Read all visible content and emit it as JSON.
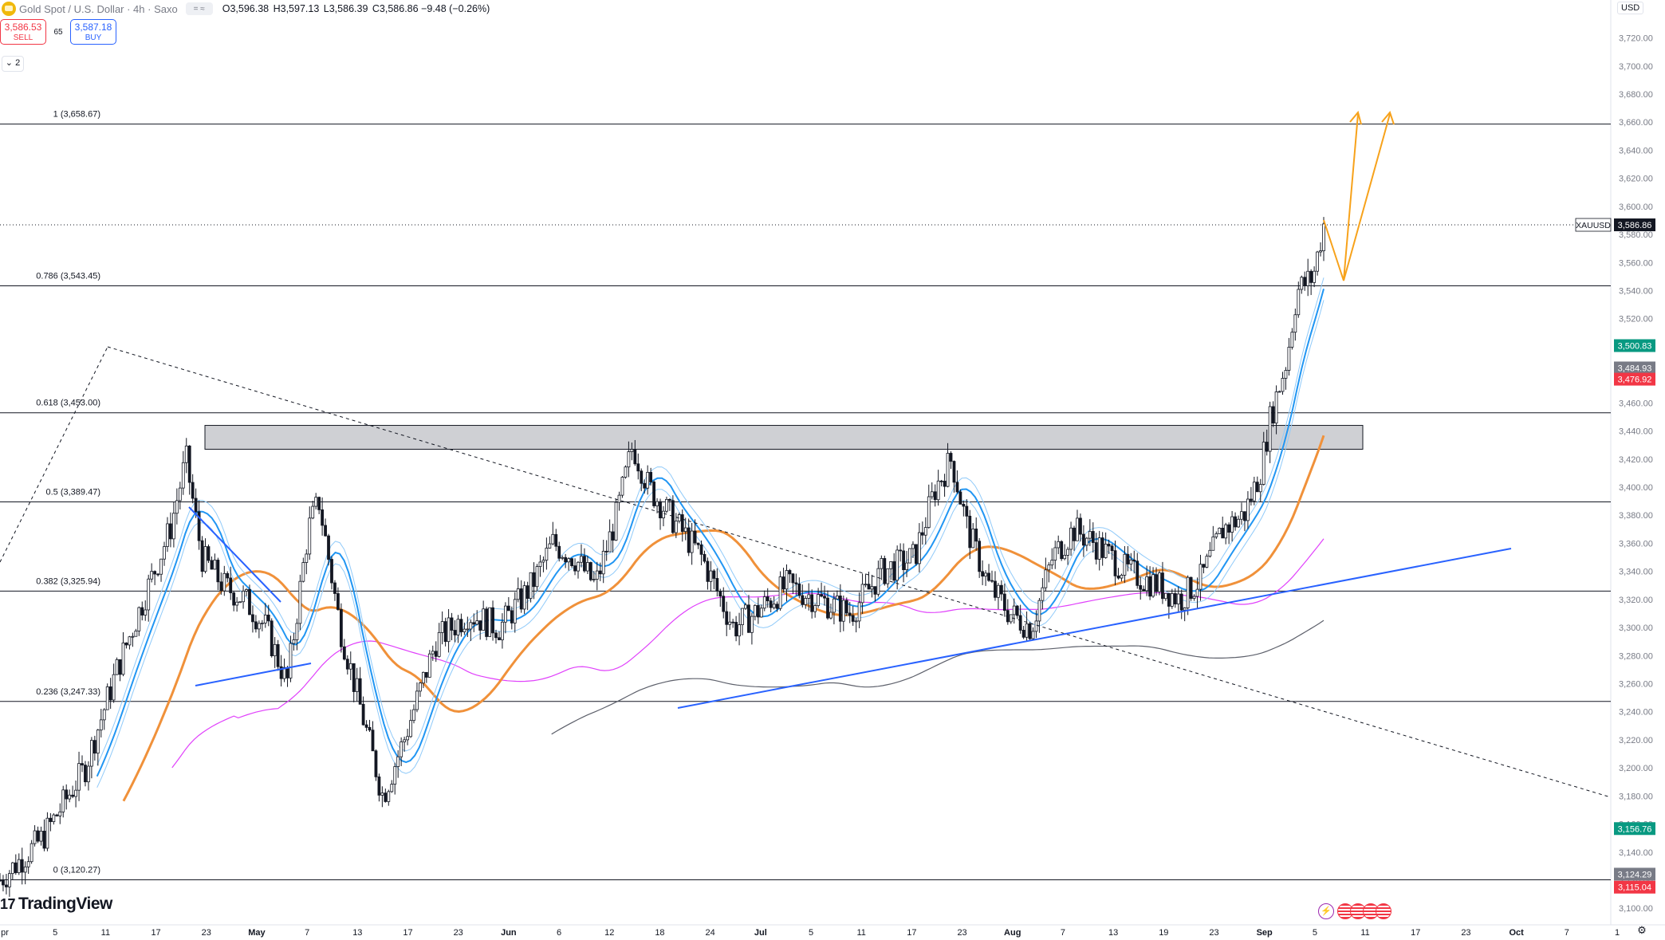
{
  "header": {
    "title": "Gold Spot / U.S. Dollar · 4h · Saxo",
    "open_label": "O",
    "open": "3,596.38",
    "high_label": "H",
    "high": "3,597.13",
    "low_label": "L",
    "low": "3,586.39",
    "close_label": "C",
    "close": "3,586.86",
    "change": "−9.48 (−0.26%)"
  },
  "trade": {
    "sell_price": "3,586.53",
    "sell_label": "SELL",
    "spread": "65",
    "buy_price": "3,587.18",
    "buy_label": "BUY"
  },
  "collapse_label": "⌄ 2",
  "currency": "USD",
  "logo": {
    "mark": "17",
    "text": "TradingView"
  },
  "icons": {
    "flash": "flash-icon",
    "flags": "us-flag-icon",
    "settings": "gear-icon"
  },
  "colors": {
    "candle": "#131722",
    "ema_fast": "#2196f3",
    "ema_band": "#90caf9",
    "ema_mid": "#f0913a",
    "ema_slow": "#e040fb",
    "ma_long": "#5d606b",
    "trend_up": "#2962ff",
    "projection": "#f7a21b",
    "price_tag": "#131722",
    "green_tag": "#089981",
    "gray_tag": "#787b86",
    "red_tag": "#f23645"
  },
  "chart_data": {
    "type": "candlestick",
    "symbol": "XAUUSD",
    "timeframe": "4h",
    "last_price": 3586.86,
    "ylim": [
      3095,
      3730
    ],
    "y_ticks": [
      3100,
      3120,
      3140,
      3160,
      3180,
      3200,
      3220,
      3240,
      3260,
      3280,
      3300,
      3320,
      3340,
      3360,
      3380,
      3400,
      3420,
      3440,
      3460,
      3480,
      3500,
      3520,
      3540,
      3560,
      3580,
      3600,
      3620,
      3640,
      3660,
      3680,
      3700,
      3720
    ],
    "y_tick_labels": [
      "3,100.00",
      "3,120.00",
      "3,140.00",
      "3,160.00",
      "3,180.00",
      "3,200.00",
      "3,220.00",
      "3,240.00",
      "3,260.00",
      "3,280.00",
      "3,300.00",
      "3,320.00",
      "3,340.00",
      "3,360.00",
      "3,380.00",
      "3,400.00",
      "3,420.00",
      "3,440.00",
      "3,460.00",
      "3,480.00",
      "3,500.00",
      "3,520.00",
      "3,540.00",
      "3,560.00",
      "3,580.00",
      "3,600.00",
      "3,620.00",
      "3,640.00",
      "3,660.00",
      "3,680.00",
      "3,700.00",
      "3,720.00"
    ],
    "x_tick_labels": [
      "pr",
      "5",
      "11",
      "17",
      "23",
      "May",
      "7",
      "13",
      "17",
      "23",
      "Jun",
      "6",
      "12",
      "18",
      "24",
      "Jul",
      "5",
      "11",
      "17",
      "23",
      "Aug",
      "7",
      "13",
      "19",
      "23",
      "Sep",
      "5",
      "11",
      "17",
      "23",
      "Oct",
      "7",
      "1"
    ],
    "x_tick_bold": [
      "May",
      "Jun",
      "Jul",
      "Aug",
      "Sep",
      "Oct"
    ],
    "fib_levels": [
      {
        "label": "1 (3,658.67)",
        "value": 3658.67
      },
      {
        "label": "0.786 (3,543.45)",
        "value": 3543.45
      },
      {
        "label": "0.618 (3,453.00)",
        "value": 3453.0
      },
      {
        "label": "0.5 (3,389.47)",
        "value": 3389.47
      },
      {
        "label": "0.382 (3,325.94)",
        "value": 3325.94
      },
      {
        "label": "0.236 (3,247.33)",
        "value": 3247.33
      },
      {
        "label": "0 (3,120.27)",
        "value": 3120.27
      }
    ],
    "price_tags": [
      {
        "label": "XAUUSD",
        "value": "3,586.86",
        "y": 3586.86,
        "style": "dark"
      },
      {
        "value": "3,500.83",
        "y": 3500.83,
        "style": "green"
      },
      {
        "value": "3,484.93",
        "y": 3484.93,
        "style": "gray"
      },
      {
        "value": "3,476.92",
        "y": 3476.92,
        "style": "red"
      },
      {
        "value": "3,156.76",
        "y": 3156.76,
        "style": "green"
      },
      {
        "value": "3,124.29",
        "y": 3124.29,
        "style": "gray"
      },
      {
        "value": "3,115.04",
        "y": 3115.04,
        "style": "red"
      }
    ],
    "resistance_zone": {
      "from": 3427,
      "to": 3444
    },
    "close_path": [
      [
        0,
        3120
      ],
      [
        40,
        3150
      ],
      [
        80,
        3200
      ],
      [
        110,
        3270
      ],
      [
        140,
        3330
      ],
      [
        160,
        3370
      ],
      [
        175,
        3420
      ],
      [
        190,
        3350
      ],
      [
        210,
        3330
      ],
      [
        230,
        3320
      ],
      [
        250,
        3300
      ],
      [
        270,
        3260
      ],
      [
        290,
        3370
      ],
      [
        300,
        3390
      ],
      [
        320,
        3300
      ],
      [
        340,
        3240
      ],
      [
        360,
        3180
      ],
      [
        380,
        3220
      ],
      [
        410,
        3290
      ],
      [
        440,
        3310
      ],
      [
        470,
        3300
      ],
      [
        500,
        3330
      ],
      [
        520,
        3360
      ],
      [
        540,
        3350
      ],
      [
        560,
        3330
      ],
      [
        580,
        3380
      ],
      [
        595,
        3430
      ],
      [
        610,
        3400
      ],
      [
        640,
        3370
      ],
      [
        660,
        3350
      ],
      [
        690,
        3300
      ],
      [
        710,
        3310
      ],
      [
        740,
        3330
      ],
      [
        770,
        3320
      ],
      [
        800,
        3310
      ],
      [
        830,
        3340
      ],
      [
        860,
        3350
      ],
      [
        880,
        3400
      ],
      [
        895,
        3420
      ],
      [
        910,
        3370
      ],
      [
        930,
        3330
      ],
      [
        950,
        3310
      ],
      [
        970,
        3300
      ],
      [
        990,
        3350
      ],
      [
        1010,
        3370
      ],
      [
        1030,
        3360
      ],
      [
        1060,
        3340
      ],
      [
        1090,
        3330
      ],
      [
        1110,
        3320
      ],
      [
        1130,
        3335
      ],
      [
        1150,
        3370
      ],
      [
        1170,
        3380
      ],
      [
        1185,
        3410
      ],
      [
        1195,
        3450
      ],
      [
        1210,
        3490
      ],
      [
        1220,
        3540
      ],
      [
        1235,
        3550
      ],
      [
        1245,
        3587
      ]
    ]
  }
}
